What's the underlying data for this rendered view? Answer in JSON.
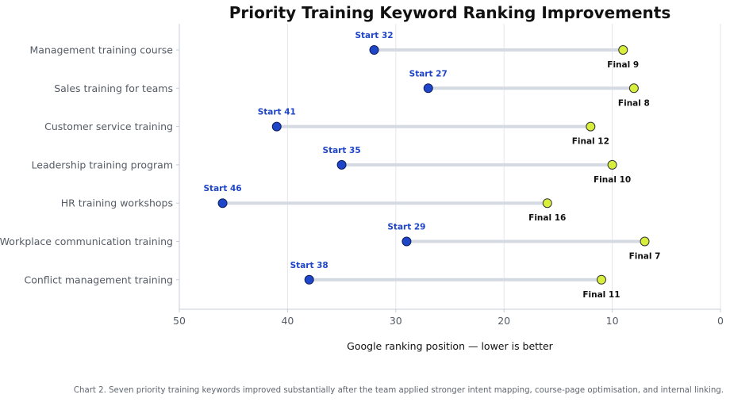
{
  "chart_data": {
    "type": "dumbbell",
    "title": "Priority Training Keyword Ranking Improvements",
    "xlabel": "Google ranking position — lower is better",
    "ylabel": "",
    "xlim": [
      50,
      0
    ],
    "x_reversed": true,
    "xticks": [
      50,
      40,
      30,
      20,
      10,
      0
    ],
    "grid": "vertical",
    "categories": [
      "Management training course",
      "Sales training for teams",
      "Customer service training",
      "Leadership training program",
      "HR training workshops",
      "Workplace communication training",
      "Conflict management training"
    ],
    "series": [
      {
        "name": "Start",
        "values": [
          32,
          27,
          41,
          35,
          46,
          29,
          38
        ],
        "color": "#1f45c8",
        "label_color": "#1f45c8"
      },
      {
        "name": "Final",
        "values": [
          9,
          8,
          12,
          10,
          16,
          7,
          11
        ],
        "color": "#d8ee3c",
        "label_color": "#111111"
      }
    ],
    "connector_color": "#d5d9e2"
  },
  "caption": "Chart 2. Seven priority training keywords improved substantially after the team applied stronger intent mapping, course-page optimisation, and internal linking."
}
